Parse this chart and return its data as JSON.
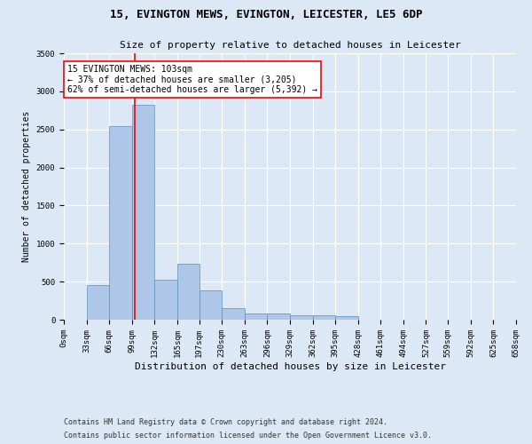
{
  "title": "15, EVINGTON MEWS, EVINGTON, LEICESTER, LE5 6DP",
  "subtitle": "Size of property relative to detached houses in Leicester",
  "xlabel": "Distribution of detached houses by size in Leicester",
  "ylabel": "Number of detached properties",
  "bin_edges": [
    0,
    33,
    66,
    99,
    132,
    165,
    197,
    230,
    263,
    296,
    329,
    362,
    395,
    428,
    461,
    494,
    527,
    559,
    592,
    625,
    658
  ],
  "bar_heights": [
    5,
    460,
    2540,
    2820,
    520,
    740,
    390,
    150,
    80,
    80,
    60,
    55,
    50,
    0,
    0,
    0,
    0,
    0,
    0,
    0
  ],
  "bar_color": "#aec6e8",
  "bar_edge_color": "#5a8fc2",
  "property_size": 103,
  "annotation_text": "15 EVINGTON MEWS: 103sqm\n← 37% of detached houses are smaller (3,205)\n62% of semi-detached houses are larger (5,392) →",
  "annotation_box_color": "white",
  "annotation_box_edge_color": "red",
  "vline_x": 103,
  "vline_color": "red",
  "ylim": [
    0,
    3500
  ],
  "yticks": [
    0,
    500,
    1000,
    1500,
    2000,
    2500,
    3000,
    3500
  ],
  "footer_line1": "Contains HM Land Registry data © Crown copyright and database right 2024.",
  "footer_line2": "Contains public sector information licensed under the Open Government Licence v3.0.",
  "background_color": "#dce8f5",
  "plot_bg_color": "#dce8f5",
  "grid_color": "white",
  "title_fontsize": 9,
  "subtitle_fontsize": 8,
  "xlabel_fontsize": 8,
  "ylabel_fontsize": 7,
  "tick_fontsize": 6.5,
  "annotation_fontsize": 7,
  "footer_fontsize": 6
}
